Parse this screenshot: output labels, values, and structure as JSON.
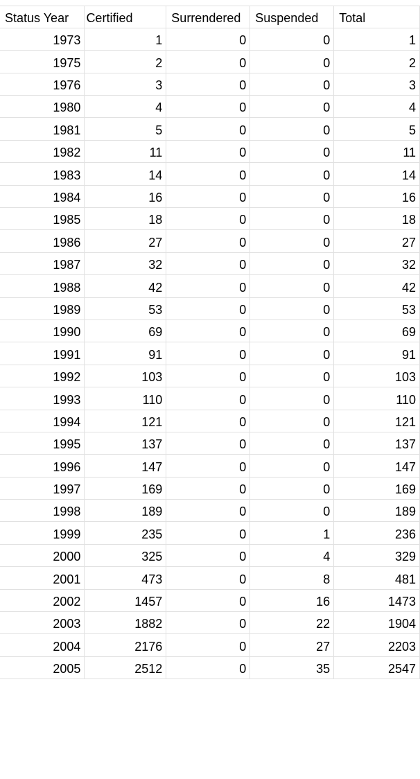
{
  "headers": [
    "Status Year",
    "Certified",
    "Surrendered",
    "Suspended",
    "Total"
  ],
  "rows": [
    [
      "1973",
      "1",
      "0",
      "0",
      "1"
    ],
    [
      "1975",
      "2",
      "0",
      "0",
      "2"
    ],
    [
      "1976",
      "3",
      "0",
      "0",
      "3"
    ],
    [
      "1980",
      "4",
      "0",
      "0",
      "4"
    ],
    [
      "1981",
      "5",
      "0",
      "0",
      "5"
    ],
    [
      "1982",
      "11",
      "0",
      "0",
      "11"
    ],
    [
      "1983",
      "14",
      "0",
      "0",
      "14"
    ],
    [
      "1984",
      "16",
      "0",
      "0",
      "16"
    ],
    [
      "1985",
      "18",
      "0",
      "0",
      "18"
    ],
    [
      "1986",
      "27",
      "0",
      "0",
      "27"
    ],
    [
      "1987",
      "32",
      "0",
      "0",
      "32"
    ],
    [
      "1988",
      "42",
      "0",
      "0",
      "42"
    ],
    [
      "1989",
      "53",
      "0",
      "0",
      "53"
    ],
    [
      "1990",
      "69",
      "0",
      "0",
      "69"
    ],
    [
      "1991",
      "91",
      "0",
      "0",
      "91"
    ],
    [
      "1992",
      "103",
      "0",
      "0",
      "103"
    ],
    [
      "1993",
      "110",
      "0",
      "0",
      "110"
    ],
    [
      "1994",
      "121",
      "0",
      "0",
      "121"
    ],
    [
      "1995",
      "137",
      "0",
      "0",
      "137"
    ],
    [
      "1996",
      "147",
      "0",
      "0",
      "147"
    ],
    [
      "1997",
      "169",
      "0",
      "0",
      "169"
    ],
    [
      "1998",
      "189",
      "0",
      "0",
      "189"
    ],
    [
      "1999",
      "235",
      "0",
      "1",
      "236"
    ],
    [
      "2000",
      "325",
      "0",
      "4",
      "329"
    ],
    [
      "2001",
      "473",
      "0",
      "8",
      "481"
    ],
    [
      "2002",
      "1457",
      "0",
      "16",
      "1473"
    ],
    [
      "2003",
      "1882",
      "0",
      "22",
      "1904"
    ],
    [
      "2004",
      "2176",
      "0",
      "27",
      "2203"
    ],
    [
      "2005",
      "2512",
      "0",
      "35",
      "2547"
    ]
  ]
}
